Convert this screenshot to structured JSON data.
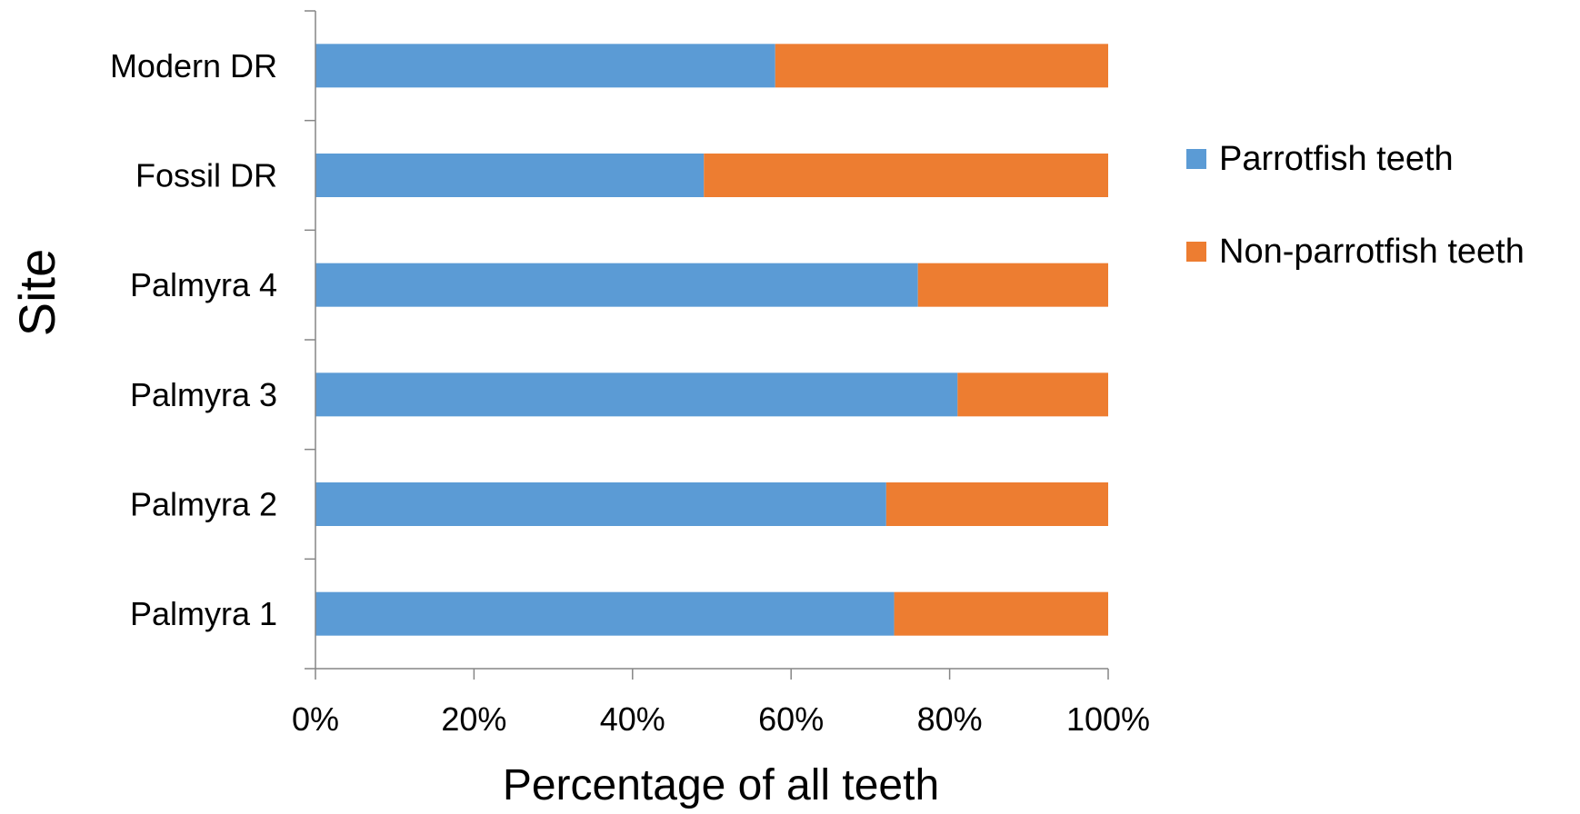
{
  "chart_data": {
    "type": "bar",
    "orientation": "horizontal",
    "stacked": "percent",
    "categories": [
      "Palmyra 1",
      "Palmyra 2",
      "Palmyra 3",
      "Palmyra 4",
      "Fossil DR",
      "Modern DR"
    ],
    "series": [
      {
        "name": "Parrotfish teeth",
        "color": "#5B9BD5",
        "values": [
          73,
          72,
          81,
          76,
          49,
          58
        ]
      },
      {
        "name": "Non-parrotfish teeth",
        "color": "#ED7D31",
        "values": [
          27,
          28,
          19,
          24,
          51,
          42
        ]
      }
    ],
    "xlabel": "Percentage of all teeth",
    "ylabel": "Site",
    "xlim": [
      0,
      100
    ],
    "xticks": [
      "0%",
      "20%",
      "40%",
      "60%",
      "80%",
      "100%"
    ],
    "grid": false,
    "legend_position": "right"
  }
}
